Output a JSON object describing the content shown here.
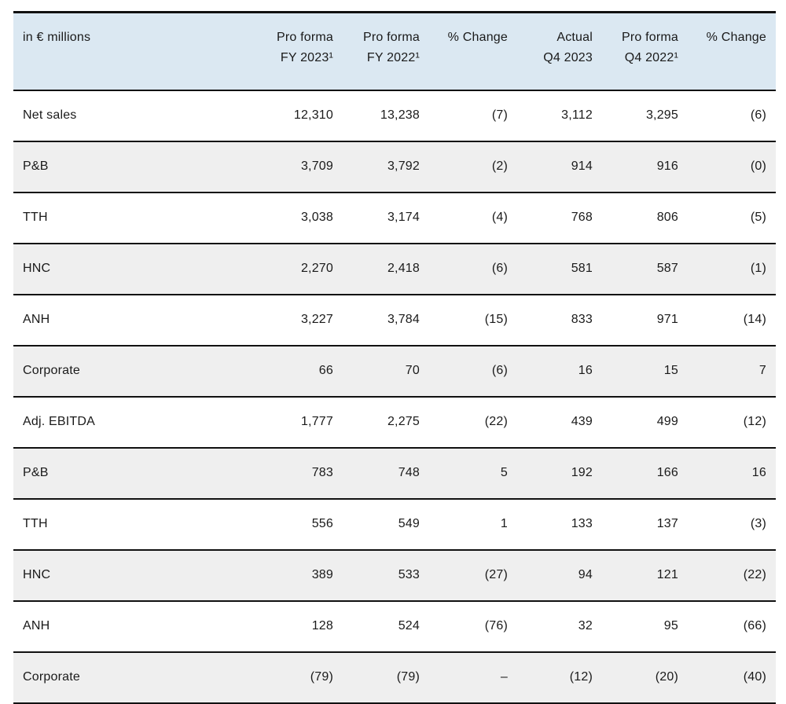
{
  "table": {
    "unit_label": "in € millions",
    "columns": [
      {
        "line1": "Pro forma",
        "line2": "FY 2023¹"
      },
      {
        "line1": "Pro forma",
        "line2": "FY 2022¹"
      },
      {
        "line1": "% Change",
        "line2": ""
      },
      {
        "line1": "Actual",
        "line2": "Q4 2023"
      },
      {
        "line1": "Pro forma",
        "line2": "Q4 2022¹"
      },
      {
        "line1": "% Change",
        "line2": ""
      }
    ],
    "rows": [
      {
        "label": "Net sales",
        "values": [
          "12,310",
          "13,238",
          "(7)",
          "3,112",
          "3,295",
          "(6)"
        ]
      },
      {
        "label": "P&B",
        "values": [
          "3,709",
          "3,792",
          "(2)",
          "914",
          "916",
          "(0)"
        ]
      },
      {
        "label": "TTH",
        "values": [
          "3,038",
          "3,174",
          "(4)",
          "768",
          "806",
          "(5)"
        ]
      },
      {
        "label": "HNC",
        "values": [
          "2,270",
          "2,418",
          "(6)",
          "581",
          "587",
          "(1)"
        ]
      },
      {
        "label": "ANH",
        "values": [
          "3,227",
          "3,784",
          "(15)",
          "833",
          "971",
          "(14)"
        ]
      },
      {
        "label": "Corporate",
        "values": [
          "66",
          "70",
          "(6)",
          "16",
          "15",
          "7"
        ]
      },
      {
        "label": "Adj. EBITDA",
        "values": [
          "1,777",
          "2,275",
          "(22)",
          "439",
          "499",
          "(12)"
        ]
      },
      {
        "label": "P&B",
        "values": [
          "783",
          "748",
          "5",
          "192",
          "166",
          "16"
        ]
      },
      {
        "label": "TTH",
        "values": [
          "556",
          "549",
          "1",
          "133",
          "137",
          "(3)"
        ]
      },
      {
        "label": "HNC",
        "values": [
          "389",
          "533",
          "(27)",
          "94",
          "121",
          "(22)"
        ]
      },
      {
        "label": "ANH",
        "values": [
          "128",
          "524",
          "(76)",
          "32",
          "95",
          "(66)"
        ]
      },
      {
        "label": "Corporate",
        "values": [
          "(79)",
          "(79)",
          "–",
          "(12)",
          "(20)",
          "(40)"
        ]
      }
    ]
  },
  "colors": {
    "header_bg": "#dbe8f2",
    "alt_row_bg": "#efefef",
    "rule": "#111111",
    "text": "#1a1a1a"
  }
}
